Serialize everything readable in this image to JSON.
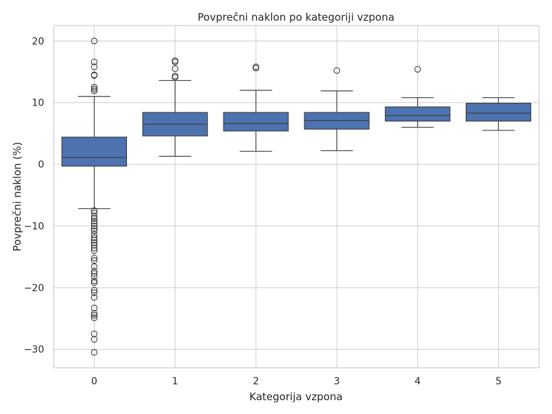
{
  "chart_data": {
    "type": "box",
    "title": "Povprečni naklon po kategoriji vzpona",
    "xlabel": "Kategorija vzpona",
    "ylabel": "Povprečni naklon (%)",
    "ylim": [
      -33,
      22.5
    ],
    "yticks": [
      {
        "value": 20,
        "label": "20"
      },
      {
        "value": 10,
        "label": "10"
      },
      {
        "value": 0,
        "label": "0"
      },
      {
        "value": -10,
        "label": "−10"
      },
      {
        "value": -20,
        "label": "−20"
      },
      {
        "value": -30,
        "label": "−30"
      }
    ],
    "grid": true,
    "color": "#4c72b0",
    "categories": [
      "0",
      "1",
      "2",
      "3",
      "4",
      "5"
    ],
    "boxes": [
      {
        "category": "0",
        "whisker_low": -7.2,
        "q1": -0.3,
        "median": 1.1,
        "q3": 4.4,
        "whisker_high": 11.0,
        "outliers": [
          20.0,
          16.6,
          15.8,
          14.5,
          14.4,
          12.5,
          12.2,
          11.9,
          -7.5,
          -7.9,
          -8.5,
          -8.8,
          -9.2,
          -9.6,
          -10.0,
          -10.4,
          -10.8,
          -11.4,
          -11.9,
          -12.3,
          -12.7,
          -13.1,
          -13.6,
          -14.0,
          -15.2,
          -15.6,
          -16.6,
          -17.3,
          -17.7,
          -18.2,
          -18.9,
          -19.2,
          -20.4,
          -20.8,
          -21.6,
          -23.3,
          -24.2,
          -24.5,
          -24.9,
          -27.5,
          -28.4,
          -30.5
        ]
      },
      {
        "category": "1",
        "whisker_low": 1.3,
        "q1": 4.6,
        "median": 6.5,
        "q3": 8.4,
        "whisker_high": 13.6,
        "outliers": [
          16.8,
          16.6,
          15.5,
          14.3,
          14.1
        ]
      },
      {
        "category": "2",
        "whisker_low": 2.1,
        "q1": 5.4,
        "median": 6.6,
        "q3": 8.4,
        "whisker_high": 12.0,
        "outliers": [
          15.8,
          15.6
        ]
      },
      {
        "category": "3",
        "whisker_low": 2.2,
        "q1": 5.7,
        "median": 7.1,
        "q3": 8.4,
        "whisker_high": 11.9,
        "outliers": [
          15.2
        ]
      },
      {
        "category": "4",
        "whisker_low": 6.0,
        "q1": 7.0,
        "median": 7.9,
        "q3": 9.3,
        "whisker_high": 10.8,
        "outliers": [
          15.4
        ]
      },
      {
        "category": "5",
        "whisker_low": 5.5,
        "q1": 7.0,
        "median": 8.3,
        "q3": 9.9,
        "whisker_high": 10.8,
        "outliers": []
      }
    ]
  }
}
